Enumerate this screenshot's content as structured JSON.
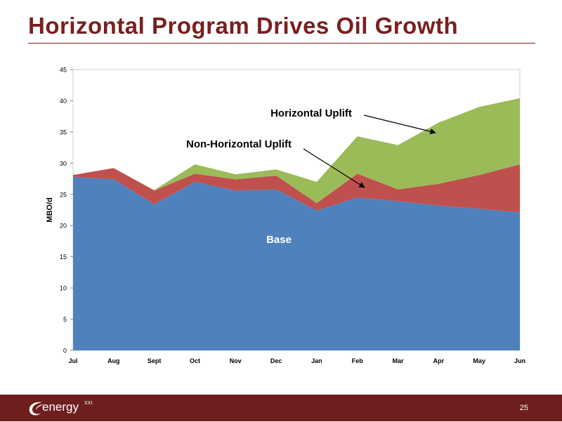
{
  "slide": {
    "title": "Horizontal Program Drives Oil Growth",
    "page_number": "25"
  },
  "logo": {
    "name": "energy",
    "superscript": "XXI"
  },
  "chart_data": {
    "type": "area",
    "stacked": true,
    "categories": [
      "Jul",
      "Aug",
      "Sept",
      "Oct",
      "Nov",
      "Dec",
      "Jan",
      "Feb",
      "Mar",
      "Apr",
      "May",
      "Jun"
    ],
    "ylabel": "MBO/d",
    "xlabel": "",
    "ylim": [
      0,
      45
    ],
    "yticks": [
      0,
      5,
      10,
      15,
      20,
      25,
      30,
      35,
      40,
      45
    ],
    "grid": false,
    "series": [
      {
        "name": "Base",
        "color": "#4f81bd",
        "values": [
          27.8,
          27.4,
          23.4,
          27.0,
          25.6,
          25.8,
          22.4,
          24.5,
          23.9,
          23.2,
          22.7,
          22.1
        ]
      },
      {
        "name": "Non-Horizontal Uplift",
        "color": "#c0504d",
        "values": [
          0.3,
          1.8,
          2.2,
          1.3,
          1.8,
          2.2,
          1.2,
          3.8,
          1.9,
          3.5,
          5.4,
          7.7
        ]
      },
      {
        "name": "Horizontal Uplift",
        "color": "#9bbb59",
        "values": [
          0.0,
          0.0,
          0.1,
          1.5,
          0.8,
          1.0,
          3.4,
          6.0,
          7.1,
          9.8,
          10.9,
          10.6
        ]
      }
    ],
    "annotations": [
      {
        "text": "Horizontal Uplift",
        "points_to": "Apr"
      },
      {
        "text": "Non-Horizontal Uplift",
        "points_to": "Feb"
      },
      {
        "text": "Base"
      }
    ]
  }
}
